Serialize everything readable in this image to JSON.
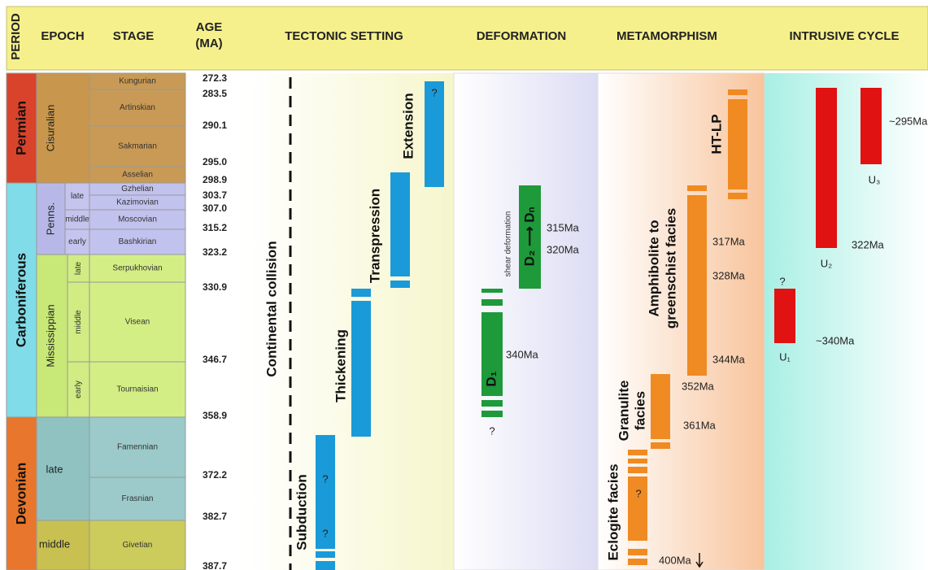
{
  "header": {
    "period": "PERIOD",
    "epoch": "EPOCH",
    "stage": "STAGE",
    "age": [
      "AGE",
      "(MA)"
    ],
    "tectonic": "TECTONIC SETTING",
    "deformation": "DEFORMATION",
    "metamorphism": "METAMORPHISM",
    "intrusive": "INTRUSIVE CYCLE"
  },
  "periods": [
    "Permian",
    "Carboniferous",
    "Devonian"
  ],
  "epochs": [
    "Cisuralian",
    "Penns.",
    "Mississippian",
    "late",
    "middle"
  ],
  "subepochs": [
    "late",
    "middle",
    "early",
    "late",
    "middle",
    "early"
  ],
  "stages": [
    "Kungurian",
    "Artinskian",
    "Sakmarian",
    "Asselian",
    "Gzhelian",
    "Kazimovian",
    "Moscovian",
    "Bashkirian",
    "Serpukhovian",
    "Visean",
    "Tournaisian",
    "Famennian",
    "Frasnian",
    "Givetian"
  ],
  "ages": [
    "272.3",
    "283.5",
    "290.1",
    "295.0",
    "298.9",
    "303.7",
    "307.0",
    "315.2",
    "323.2",
    "330.9",
    "346.7",
    "358.9",
    "372.2",
    "382.7",
    "387.7"
  ],
  "tectonic": {
    "collision": "Continental collision",
    "phases": [
      {
        "label": "Subduction",
        "notes": [
          "?",
          "?"
        ]
      },
      {
        "label": "Thickening"
      },
      {
        "label": "Transpression"
      },
      {
        "label": "Extension",
        "notes": [
          "?"
        ]
      }
    ]
  },
  "deformation": [
    {
      "label": "D₁",
      "notes": [
        "?"
      ],
      "ages": [
        "340Ma"
      ]
    },
    {
      "label": "D₂ ⟶ Dₙ",
      "caption": "shear deformation",
      "ages": [
        "315Ma",
        "320Ma"
      ]
    }
  ],
  "metamorphism": [
    {
      "label": [
        "Eclogite facies"
      ],
      "notes": [
        "?"
      ],
      "ages": [
        "400Ma"
      ]
    },
    {
      "label": [
        "Granulite",
        "facies"
      ],
      "ages": [
        "352Ma",
        "361Ma"
      ]
    },
    {
      "label": [
        "Amphibolite to",
        "greenschist facies"
      ],
      "ages": [
        "317Ma",
        "328Ma",
        "344Ma"
      ]
    },
    {
      "label": [
        "HT-LP"
      ],
      "ages": []
    }
  ],
  "intrusive": [
    {
      "label": "U₁",
      "notes": [
        "?"
      ],
      "ages": [
        "~340Ma"
      ]
    },
    {
      "label": "U₂",
      "ages": [
        "322Ma"
      ]
    },
    {
      "label": "U₃",
      "ages": [
        "~295Ma"
      ]
    }
  ]
}
